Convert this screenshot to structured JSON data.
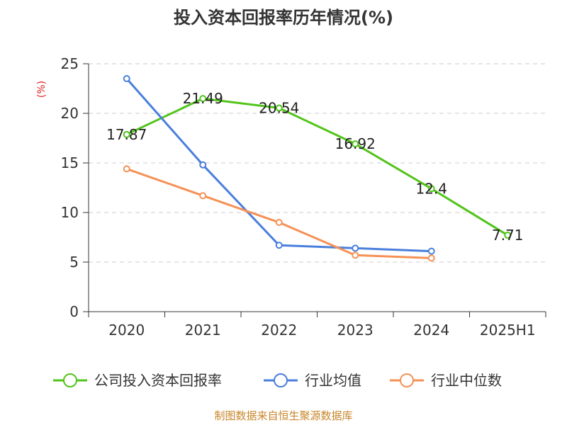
{
  "chart_data": {
    "type": "line",
    "title": "投入资本回报率历年情况(%)",
    "unit_label": "(%)",
    "categories": [
      "2020",
      "2021",
      "2022",
      "2023",
      "2024",
      "2025H1"
    ],
    "ylim": [
      0,
      25
    ],
    "yticks": [
      0,
      5,
      10,
      15,
      20,
      25
    ],
    "grid": true,
    "legend_position": "bottom",
    "series": [
      {
        "name": "公司投入资本回报率",
        "color": "#52c41a",
        "values": [
          17.87,
          21.49,
          20.54,
          16.92,
          12.4,
          7.71
        ],
        "labels": [
          "17.87",
          "21.49",
          "20.54",
          "16.92",
          "12.4",
          "7.71"
        ]
      },
      {
        "name": "行业均值",
        "color": "#4a7fdc",
        "values": [
          23.5,
          14.8,
          6.7,
          6.4,
          6.1,
          null
        ]
      },
      {
        "name": "行业中位数",
        "color": "#f59156",
        "values": [
          14.4,
          11.7,
          9.0,
          5.7,
          5.4,
          null
        ]
      }
    ],
    "source": "制图数据来自恒生聚源数据库"
  }
}
